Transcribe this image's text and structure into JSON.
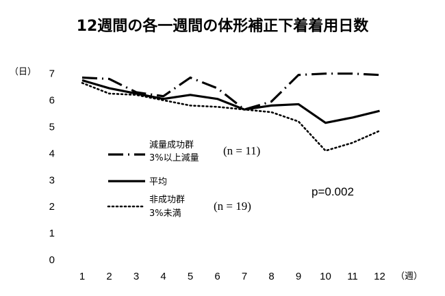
{
  "chart_data": {
    "type": "line",
    "title": "12週間の各一週間の体形補正下着着用日数",
    "y_unit_label": "（日）",
    "x_unit_label": "（週）",
    "ylim": [
      0,
      7
    ],
    "yticks": [
      "0",
      "1",
      "2",
      "3",
      "4",
      "5",
      "6",
      "7"
    ],
    "categories": [
      "1",
      "2",
      "3",
      "4",
      "5",
      "6",
      "7",
      "8",
      "9",
      "10",
      "11",
      "12"
    ],
    "grid": false,
    "series": [
      {
        "key": "success",
        "legend_lines": [
          "減量成功群",
          "3%以上減量"
        ],
        "n_label": "(n = 11)",
        "style": "dash-dot",
        "color": "#000000",
        "values": [
          6.85,
          6.8,
          6.3,
          6.15,
          6.85,
          6.45,
          5.65,
          5.95,
          6.95,
          7.0,
          7.0,
          6.95
        ]
      },
      {
        "key": "average",
        "legend_lines": [
          "平均"
        ],
        "style": "solid",
        "color": "#000000",
        "values": [
          6.75,
          6.45,
          6.25,
          6.05,
          6.2,
          6.05,
          5.65,
          5.8,
          5.85,
          5.15,
          5.35,
          5.6
        ]
      },
      {
        "key": "nonsuccess",
        "legend_lines": [
          "非成功群",
          "3%未満"
        ],
        "n_label": "(n = 19)",
        "style": "dotted",
        "color": "#000000",
        "values": [
          6.65,
          6.25,
          6.2,
          6.0,
          5.8,
          5.75,
          5.65,
          5.55,
          5.2,
          4.1,
          4.4,
          4.85
        ]
      }
    ],
    "annotation": "p=0.002"
  }
}
